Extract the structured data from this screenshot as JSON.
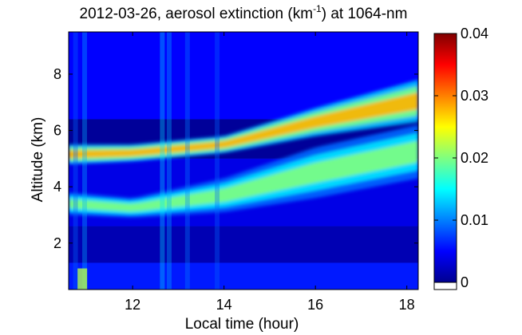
{
  "chart_data": {
    "type": "heatmap",
    "title_main": "2012-03-26, aerosol extinction (km",
    "title_sup": "-1",
    "title_tail": ") at 1064-nm",
    "xlabel": "Local time (hour)",
    "ylabel": "Altitude (km)",
    "xlim": [
      10.6,
      18.25
    ],
    "ylim": [
      0.35,
      9.5
    ],
    "xticks": [
      "12",
      "14",
      "16",
      "18"
    ],
    "yticks": [
      "2",
      "4",
      "6",
      "8"
    ],
    "colorbar": {
      "range": [
        0,
        0.04
      ],
      "ticks": [
        "0",
        "0.01",
        "0.02",
        "0.03",
        "0.04"
      ],
      "colormap": "jet"
    },
    "layers": [
      {
        "name": "lower aerosol layer",
        "base_km": [
          [
            10.6,
            3.0
          ],
          [
            12.0,
            2.9
          ],
          [
            14.0,
            3.1
          ],
          [
            16.0,
            3.6
          ],
          [
            18.25,
            4.3
          ]
        ],
        "top_km": [
          [
            10.6,
            3.8
          ],
          [
            12.0,
            3.6
          ],
          [
            14.0,
            4.3
          ],
          [
            16.0,
            5.4
          ],
          [
            18.25,
            6.2
          ]
        ],
        "peak_value": 0.02
      },
      {
        "name": "upper aerosol layer",
        "base_km": [
          [
            10.6,
            4.8
          ],
          [
            12.0,
            4.9
          ],
          [
            14.0,
            5.2
          ],
          [
            16.0,
            5.8
          ],
          [
            18.25,
            6.3
          ]
        ],
        "top_km": [
          [
            10.6,
            5.5
          ],
          [
            12.0,
            5.5
          ],
          [
            14.0,
            5.8
          ],
          [
            16.0,
            6.8
          ],
          [
            18.25,
            7.8
          ]
        ],
        "peak_value": 0.028
      }
    ],
    "background_value": 0.004,
    "boundary_layer_top_km": 1.3
  },
  "colors": {
    "axis": "#000000",
    "background": "#ffffff",
    "deep_blue": "#0000a0"
  }
}
